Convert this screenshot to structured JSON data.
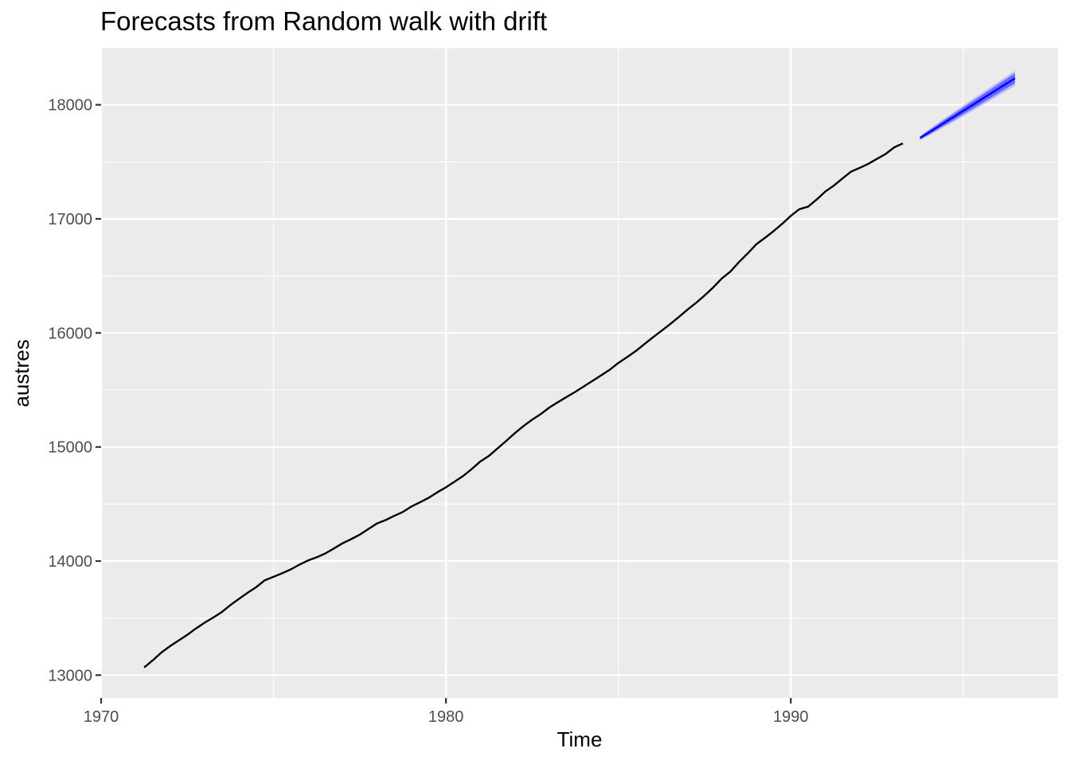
{
  "chart_data": {
    "type": "line",
    "title": "Forecasts from Random walk with drift",
    "xlabel": "Time",
    "ylabel": "austres",
    "xlim": [
      1970,
      1997.75
    ],
    "ylim": [
      12800,
      18500
    ],
    "x_ticks": [
      {
        "value": 1970,
        "label": "1970"
      },
      {
        "value": 1980,
        "label": "1980"
      },
      {
        "value": 1990,
        "label": "1990"
      }
    ],
    "x_minor_ticks": [
      1975,
      1985,
      1995
    ],
    "y_ticks": [
      {
        "value": 13000,
        "label": "13000"
      },
      {
        "value": 14000,
        "label": "14000"
      },
      {
        "value": 15000,
        "label": "15000"
      },
      {
        "value": 16000,
        "label": "16000"
      },
      {
        "value": 17000,
        "label": "17000"
      },
      {
        "value": 18000,
        "label": "18000"
      }
    ],
    "y_minor_ticks": [
      12500,
      13500,
      14500,
      15500,
      16500,
      17500,
      18500
    ],
    "grid": true,
    "background": "#ebebeb",
    "colors": {
      "history": "#000000",
      "forecast": "#0000ff",
      "pi80": "#5959ff",
      "pi95": "#b0b0ff"
    },
    "history": {
      "start": 1971.25,
      "frequency": 4,
      "values": [
        13067.3,
        13130.5,
        13198.4,
        13254.2,
        13303.7,
        13353.9,
        13409.3,
        13459.2,
        13504.5,
        13552.6,
        13614.3,
        13669.5,
        13722.6,
        13772.1,
        13832.0,
        13862.6,
        13893.0,
        13926.8,
        13968.9,
        14004.7,
        14033.1,
        14066.0,
        14110.1,
        14155.6,
        14192.2,
        14231.7,
        14281.5,
        14330.3,
        14359.3,
        14396.6,
        14430.8,
        14478.4,
        14515.7,
        14554.9,
        14602.5,
        14646.4,
        14695.4,
        14746.6,
        14807.4,
        14874.4,
        14923.3,
        14988.7,
        15054.1,
        15121.7,
        15184.2,
        15239.3,
        15288.9,
        15346.2,
        15393.5,
        15439.0,
        15483.5,
        15531.5,
        15579.4,
        15628.5,
        15677.3,
        15736.7,
        15788.3,
        15839.7,
        15900.6,
        15961.5,
        16018.3,
        16076.9,
        16139.0,
        16203.0,
        16263.3,
        16327.9,
        16398.9,
        16478.3,
        16538.2,
        16621.6,
        16697.0,
        16777.2,
        16833.1,
        16891.6,
        16956.8,
        17026.3,
        17085.4,
        17106.9,
        17169.4,
        17239.4,
        17292.0,
        17354.2,
        17414.2,
        17447.3,
        17482.6,
        17526.0,
        17568.7,
        17627.1,
        17661.5
      ]
    },
    "forecast": {
      "start": 1993.75,
      "frequency": 4,
      "values": [
        17709.1,
        17756.6,
        17804.2,
        17851.7,
        17899.3,
        17946.8,
        17994.4,
        18041.9,
        18089.5,
        18137.0,
        18184.6,
        18232.1
      ],
      "lo80": [
        17696.7,
        17739.1,
        17782.8,
        17827.0,
        17871.6,
        17916.5,
        17961.6,
        18007.0,
        18052.4,
        18098.0,
        18143.7,
        18189.5
      ],
      "hi80": [
        17721.5,
        17774.1,
        17825.6,
        17876.4,
        17927.0,
        17977.1,
        18027.2,
        18076.8,
        18126.6,
        18176.0,
        18225.5,
        18274.7
      ],
      "lo95": [
        17690.1,
        17729.8,
        17771.4,
        17813.9,
        17856.9,
        17900.3,
        17944.2,
        17988.5,
        18032.9,
        18077.4,
        18122.1,
        18167.0
      ],
      "hi95": [
        17728.1,
        17783.4,
        17837.0,
        17889.5,
        17941.7,
        17993.3,
        18044.6,
        18095.3,
        18146.1,
        18196.6,
        18247.1,
        18297.2
      ]
    }
  }
}
